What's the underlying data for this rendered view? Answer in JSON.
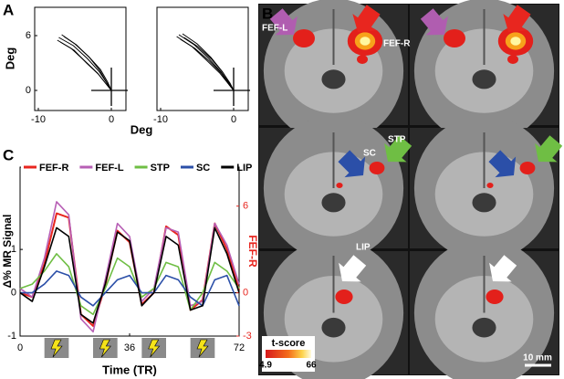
{
  "panel_labels": [
    "A",
    "B",
    "C"
  ],
  "chart_data": [
    {
      "type": "trajectory",
      "color": "#000000",
      "xlabel": "Deg",
      "ylabel": "Deg",
      "xlim": [
        -10.5,
        2
      ],
      "ylim": [
        -2.2,
        9.1
      ],
      "xticks": [
        -10,
        0
      ],
      "yticks": [
        0,
        6
      ],
      "series": [
        {
          "x": [
            -7.2,
            -5.2,
            -3.3,
            -1.7,
            -0.6,
            0
          ],
          "values": [
            5.8,
            4.9,
            3.5,
            2.1,
            0.8,
            0
          ]
        },
        {
          "x": [
            -6.8,
            -5.0,
            -3.1,
            -1.5,
            -0.5,
            0
          ],
          "values": [
            6.1,
            5.1,
            3.7,
            2.3,
            0.9,
            0
          ]
        },
        {
          "x": [
            -7.4,
            -5.5,
            -3.6,
            -1.9,
            -0.7,
            0
          ],
          "values": [
            5.5,
            4.6,
            3.2,
            1.9,
            0.7,
            0
          ]
        },
        {
          "x": [
            -6.5,
            -4.8,
            -3.0,
            -1.6,
            -0.6,
            0
          ],
          "values": [
            5.9,
            5.0,
            3.6,
            2.2,
            0.8,
            0
          ]
        },
        {
          "x": [
            -7.0,
            -5.1,
            -3.4,
            -1.8,
            -0.6,
            0
          ],
          "values": [
            5.3,
            4.4,
            3.0,
            1.8,
            0.6,
            0
          ]
        }
      ]
    },
    {
      "type": "trajectory",
      "color": "#000000",
      "xlim": [
        -10.5,
        2
      ],
      "ylim": [
        -2.2,
        9.1
      ],
      "xticks": [
        -10,
        0
      ],
      "series": [
        {
          "x": [
            -7.5,
            -5.4,
            -3.4,
            -1.7,
            -0.6,
            0
          ],
          "values": [
            6.1,
            5.0,
            3.5,
            2.0,
            0.7,
            0
          ]
        },
        {
          "x": [
            -7.0,
            -5.0,
            -3.1,
            -1.6,
            -0.5,
            0
          ],
          "values": [
            6.2,
            5.1,
            3.6,
            2.1,
            0.8,
            0
          ]
        },
        {
          "x": [
            -7.8,
            -5.7,
            -3.7,
            -1.9,
            -0.7,
            0
          ],
          "values": [
            5.9,
            4.8,
            3.3,
            1.9,
            0.7,
            0
          ]
        },
        {
          "x": [
            -6.8,
            -4.9,
            -3.0,
            -1.5,
            -0.5,
            0
          ],
          "values": [
            5.8,
            4.8,
            3.4,
            2.0,
            0.7,
            0
          ]
        },
        {
          "x": [
            -7.3,
            -5.3,
            -3.3,
            -1.7,
            -0.6,
            0
          ],
          "values": [
            5.6,
            4.6,
            3.2,
            1.9,
            0.6,
            0
          ]
        }
      ]
    },
    {
      "type": "line",
      "xlabel": "Time (TR)",
      "ylabel": "Δ% MR Signal",
      "y2label": "FEF-R",
      "xlim": [
        0,
        72
      ],
      "xticks": [
        0,
        36,
        72
      ],
      "ylim": [
        -1,
        2.9
      ],
      "yticks": [
        -1,
        0,
        1
      ],
      "y2lim": [
        -3,
        8.7
      ],
      "y2ticks": [
        -3,
        0,
        6
      ],
      "stimulation_blocks": [
        [
          8,
          16
        ],
        [
          24,
          32
        ],
        [
          40,
          48
        ],
        [
          56,
          64
        ]
      ],
      "x": [
        0,
        4,
        8,
        12,
        16,
        20,
        24,
        28,
        32,
        36,
        40,
        44,
        48,
        52,
        56,
        60,
        64,
        68,
        72
      ],
      "series": [
        {
          "name": "FEF-R",
          "color": "#e8261f",
          "axis": "y2",
          "values": [
            0,
            -0.3,
            2,
            5.5,
            5.2,
            -1.5,
            -2.3,
            0.5,
            4.3,
            3.5,
            -0.8,
            0,
            4.6,
            4,
            -1.2,
            -0.5,
            4.8,
            3,
            0.2
          ]
        },
        {
          "name": "FEF-L",
          "color": "#b75fb5",
          "values": [
            0.1,
            -0.1,
            0.8,
            2.1,
            1.8,
            -0.6,
            -0.9,
            0.3,
            1.6,
            1.3,
            -0.2,
            0.1,
            1.5,
            1.4,
            -0.3,
            -0.2,
            1.6,
            1.1,
            0.2
          ]
        },
        {
          "name": "STP",
          "color": "#6fbe44",
          "values": [
            0.1,
            0.2,
            0.5,
            0.9,
            0.6,
            -0.3,
            -0.5,
            0.1,
            0.8,
            0.6,
            -0.1,
            0.1,
            0.7,
            0.6,
            -0.4,
            0,
            0.7,
            0.5,
            0.1
          ]
        },
        {
          "name": "SC",
          "color": "#2b4fa8",
          "values": [
            0,
            0,
            0.2,
            0.5,
            0.4,
            -0.1,
            -0.3,
            0,
            0.3,
            0.4,
            0,
            0,
            0.4,
            0.3,
            -0.1,
            -0.3,
            0.3,
            0.4,
            -0.3
          ]
        },
        {
          "name": "LIP",
          "color": "#000000",
          "values": [
            0,
            -0.2,
            0.6,
            1.5,
            1.3,
            -0.5,
            -0.7,
            0.2,
            1.4,
            1.2,
            -0.3,
            0,
            1.3,
            1.1,
            -0.4,
            -0.3,
            1.5,
            0.9,
            0
          ]
        }
      ]
    }
  ],
  "brain_figure": {
    "labels": [
      "FEF-L",
      "FEF-R",
      "SC",
      "STP",
      "LIP"
    ],
    "colorbar": {
      "title": "t-score",
      "range": [
        4.9,
        66
      ]
    },
    "scale_bar": "10 mm"
  }
}
